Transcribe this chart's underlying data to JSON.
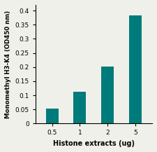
{
  "categories": [
    "0.5",
    "1",
    "2",
    "5"
  ],
  "values": [
    0.052,
    0.113,
    0.202,
    0.382
  ],
  "bar_color": "#007b7b",
  "xlabel": "Histone extracts (ug)",
  "ylabel": "Monomethyl H3-K4 (OD450 nm)",
  "ylim": [
    0,
    0.42
  ],
  "yticks": [
    0,
    0.05,
    0.1,
    0.15,
    0.2,
    0.25,
    0.3,
    0.35,
    0.4
  ],
  "xlabel_fontsize": 7,
  "ylabel_fontsize": 6.2,
  "tick_fontsize": 6.5,
  "background_color": "#f0f0ea"
}
